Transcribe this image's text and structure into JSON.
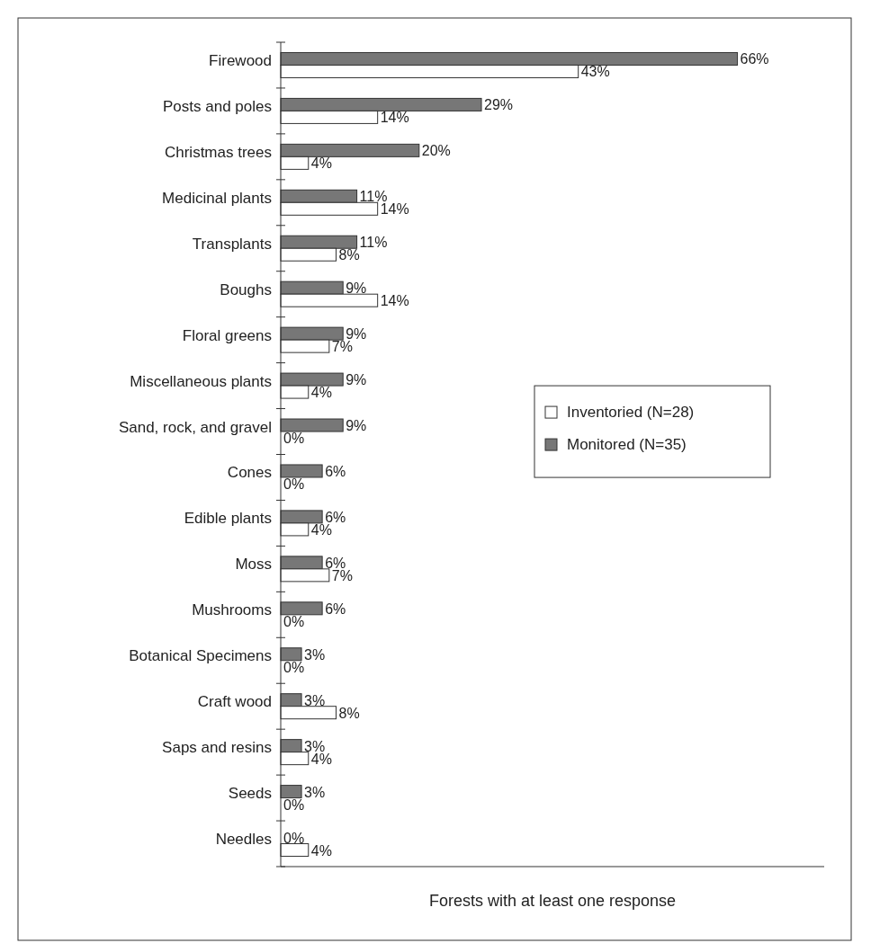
{
  "chart_data": {
    "type": "bar",
    "orientation": "horizontal",
    "xlabel": "Forests with at least one response",
    "categories": [
      "Firewood",
      "Posts and poles",
      "Christmas trees",
      "Medicinal plants",
      "Transplants",
      "Boughs",
      "Floral greens",
      "Miscellaneous plants",
      "Sand, rock, and gravel",
      "Cones",
      "Edible plants",
      "Moss",
      "Mushrooms",
      "Botanical Specimens",
      "Craft wood",
      "Saps and resins",
      "Seeds",
      "Needles"
    ],
    "series": [
      {
        "name": "Monitored (N=35)",
        "color": "#777777",
        "values": [
          66,
          29,
          20,
          11,
          11,
          9,
          9,
          9,
          9,
          6,
          6,
          6,
          6,
          3,
          3,
          3,
          3,
          0
        ],
        "value_labels": [
          "66%",
          "29%",
          "20%",
          "11%",
          "11%",
          "9%",
          "9%",
          "9%",
          "9%",
          "6%",
          "6%",
          "6%",
          "6%",
          "3%",
          "3%",
          "3%",
          "3%",
          "0%"
        ]
      },
      {
        "name": "Inventoried (N=28)",
        "color": "#ffffff",
        "values": [
          43,
          14,
          4,
          14,
          8,
          14,
          7,
          4,
          0,
          0,
          4,
          7,
          0,
          0,
          8,
          4,
          0,
          4
        ],
        "value_labels": [
          "43%",
          "14%",
          "4%",
          "14%",
          "8%",
          "14%",
          "7%",
          "4%",
          "0%",
          "0%",
          "4%",
          "7%",
          "0%",
          "0%",
          "8%",
          "4%",
          "0%",
          "4%"
        ]
      }
    ],
    "legend": "right",
    "grid": false
  }
}
